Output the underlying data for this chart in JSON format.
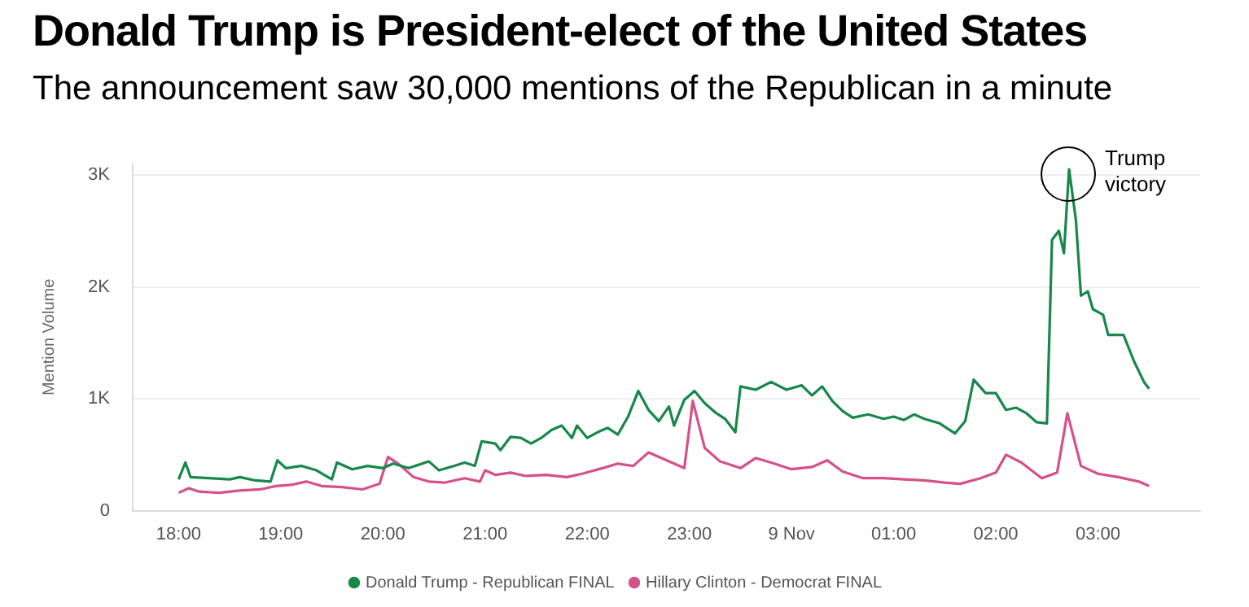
{
  "chart_data": {
    "type": "line",
    "title": "Donald Trump is President-elect of the United States",
    "subtitle": "The announcement saw 30,000 mentions of the Republican in a minute",
    "ylabel": "Mention Volume",
    "xlim": [
      "--11-08T17:33",
      "--11-09T04:00"
    ],
    "xticks": [
      {
        "value": "--11-08T18:00",
        "label": "18:00"
      },
      {
        "value": "--11-08T19:00",
        "label": "19:00"
      },
      {
        "value": "--11-08T20:00",
        "label": "20:00"
      },
      {
        "value": "--11-08T21:00",
        "label": "21:00"
      },
      {
        "value": "--11-08T22:00",
        "label": "22:00"
      },
      {
        "value": "--11-08T23:00",
        "label": "23:00"
      },
      {
        "value": "--11-09T00:00",
        "label": "9 Nov"
      },
      {
        "value": "--11-09T01:00",
        "label": "01:00"
      },
      {
        "value": "--11-09T02:00",
        "label": "02:00"
      },
      {
        "value": "--11-09T03:00",
        "label": "03:00"
      }
    ],
    "ylim": [
      0,
      3100
    ],
    "yticks": [
      0,
      {
        "value": 1000,
        "label": "1K"
      },
      {
        "value": 2000,
        "label": "2K"
      },
      {
        "value": 3000,
        "label": "3K"
      }
    ],
    "grid": "y",
    "legend": "bottom",
    "marker": "none",
    "line_style": "solid",
    "annotations": [
      {
        "text": "Trump victory",
        "x": "--11-09T02:43",
        "y": 3050
      }
    ],
    "series": [
      {
        "name": "Donald Trump - Republican FINAL",
        "color": "#17874a",
        "x": [
          "--11-08T18:00",
          "--11-08T18:04",
          "--11-08T18:07",
          "--11-08T18:18",
          "--11-08T18:30",
          "--11-08T18:36",
          "--11-08T18:45",
          "--11-08T18:54",
          "--11-08T18:58",
          "--11-08T19:03",
          "--11-08T19:12",
          "--11-08T19:21",
          "--11-08T19:30",
          "--11-08T19:33",
          "--11-08T19:42",
          "--11-08T19:51",
          "--11-08T20:00",
          "--11-08T20:06",
          "--11-08T20:15",
          "--11-08T20:27",
          "--11-08T20:33",
          "--11-08T20:42",
          "--11-08T20:48",
          "--11-08T20:54",
          "--11-08T20:58",
          "--11-08T21:06",
          "--11-08T21:09",
          "--11-08T21:15",
          "--11-08T21:21",
          "--11-08T21:27",
          "--11-08T21:33",
          "--11-08T21:39",
          "--11-08T21:45",
          "--11-08T21:51",
          "--11-08T21:54",
          "--11-08T22:00",
          "--11-08T22:06",
          "--11-08T22:12",
          "--11-08T22:18",
          "--11-08T22:24",
          "--11-08T22:30",
          "--11-08T22:36",
          "--11-08T22:42",
          "--11-08T22:48",
          "--11-08T22:51",
          "--11-08T22:57",
          "--11-08T23:03",
          "--11-08T23:09",
          "--11-08T23:15",
          "--11-08T23:21",
          "--11-08T23:27",
          "--11-08T23:30",
          "--11-08T23:39",
          "--11-08T23:48",
          "--11-08T23:57",
          "--11-09T00:06",
          "--11-09T00:12",
          "--11-09T00:18",
          "--11-09T00:24",
          "--11-09T00:30",
          "--11-09T00:36",
          "--11-09T00:45",
          "--11-09T00:54",
          "--11-09T01:00",
          "--11-09T01:06",
          "--11-09T01:12",
          "--11-09T01:18",
          "--11-09T01:27",
          "--11-09T01:36",
          "--11-09T01:42",
          "--11-09T01:47",
          "--11-09T01:54",
          "--11-09T02:00",
          "--11-09T02:06",
          "--11-09T02:12",
          "--11-09T02:18",
          "--11-09T02:24",
          "--11-09T02:30",
          "--11-09T02:33",
          "--11-09T02:37",
          "--11-09T02:40",
          "--11-09T02:43",
          "--11-09T02:47",
          "--11-09T02:50",
          "--11-09T02:54",
          "--11-09T02:57",
          "--11-09T03:03",
          "--11-09T03:06",
          "--11-09T03:15",
          "--11-09T03:21",
          "--11-09T03:27",
          "--11-09T03:30"
        ],
        "values": [
          280,
          430,
          300,
          290,
          280,
          300,
          270,
          260,
          450,
          380,
          400,
          360,
          280,
          430,
          370,
          400,
          380,
          420,
          380,
          440,
          360,
          400,
          430,
          400,
          620,
          600,
          540,
          660,
          650,
          600,
          650,
          720,
          760,
          650,
          760,
          650,
          700,
          740,
          680,
          840,
          1070,
          900,
          800,
          930,
          760,
          990,
          1070,
          960,
          880,
          820,
          700,
          1110,
          1080,
          1150,
          1080,
          1120,
          1030,
          1110,
          980,
          890,
          830,
          860,
          820,
          840,
          810,
          860,
          820,
          780,
          690,
          800,
          1170,
          1050,
          1050,
          900,
          920,
          870,
          790,
          780,
          2420,
          2500,
          2300,
          3050,
          2600,
          1920,
          1960,
          1800,
          1750,
          1570,
          1570,
          1340,
          1150,
          1090
        ]
      },
      {
        "name": "Hillary Clinton - Democrat FINAL",
        "color": "#d6508a",
        "x": [
          "--11-08T18:00",
          "--11-08T18:06",
          "--11-08T18:12",
          "--11-08T18:24",
          "--11-08T18:36",
          "--11-08T18:48",
          "--11-08T18:57",
          "--11-08T19:06",
          "--11-08T19:15",
          "--11-08T19:24",
          "--11-08T19:36",
          "--11-08T19:48",
          "--11-08T19:58",
          "--11-08T20:03",
          "--11-08T20:09",
          "--11-08T20:18",
          "--11-08T20:27",
          "--11-08T20:36",
          "--11-08T20:48",
          "--11-08T20:57",
          "--11-08T21:00",
          "--11-08T21:06",
          "--11-08T21:15",
          "--11-08T21:24",
          "--11-08T21:36",
          "--11-08T21:48",
          "--11-08T21:57",
          "--11-08T22:09",
          "--11-08T22:18",
          "--11-08T22:27",
          "--11-08T22:36",
          "--11-08T22:45",
          "--11-08T22:51",
          "--11-08T22:57",
          "--11-08T23:02",
          "--11-08T23:09",
          "--11-08T23:18",
          "--11-08T23:30",
          "--11-08T23:39",
          "--11-08T23:48",
          "--11-09T00:00",
          "--11-09T00:12",
          "--11-09T00:21",
          "--11-09T00:30",
          "--11-09T00:42",
          "--11-09T00:54",
          "--11-09T01:06",
          "--11-09T01:18",
          "--11-09T01:30",
          "--11-09T01:39",
          "--11-09T01:51",
          "--11-09T02:00",
          "--11-09T02:06",
          "--11-09T02:15",
          "--11-09T02:27",
          "--11-09T02:36",
          "--11-09T02:42",
          "--11-09T02:50",
          "--11-09T03:00",
          "--11-09T03:12",
          "--11-09T03:24",
          "--11-09T03:30"
        ],
        "values": [
          160,
          200,
          170,
          160,
          180,
          190,
          220,
          230,
          260,
          220,
          210,
          190,
          240,
          480,
          420,
          300,
          260,
          250,
          290,
          260,
          360,
          320,
          340,
          310,
          320,
          300,
          330,
          380,
          420,
          400,
          520,
          460,
          420,
          380,
          980,
          560,
          440,
          380,
          470,
          430,
          370,
          390,
          450,
          350,
          290,
          290,
          280,
          270,
          250,
          240,
          290,
          340,
          500,
          430,
          290,
          340,
          870,
          400,
          330,
          300,
          260,
          220
        ]
      }
    ]
  }
}
